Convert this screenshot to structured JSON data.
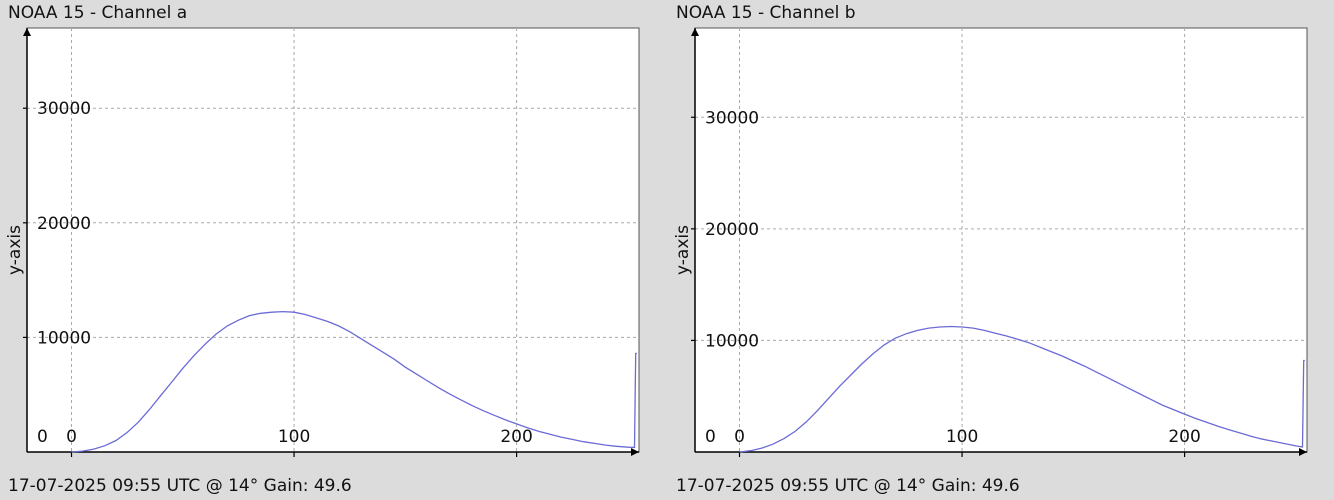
{
  "chart_data": [
    {
      "type": "line",
      "title": "NOAA 15 - Channel a",
      "footer": "17-07-2025 09:55 UTC @ 14° Gain: 49.6",
      "xlabel": "",
      "ylabel": "y-axis",
      "xlim": [
        -20,
        255
      ],
      "ylim": [
        0,
        37000
      ],
      "x_ticks": [
        0,
        100,
        200
      ],
      "y_ticks": [
        10000,
        20000,
        30000
      ],
      "grid": true,
      "line_color": "#6b6bd6",
      "series": [
        {
          "x": [
            0,
            5,
            10,
            15,
            20,
            25,
            30,
            35,
            40,
            45,
            50,
            55,
            60,
            65,
            70,
            75,
            80,
            85,
            90,
            95,
            100,
            105,
            110,
            115,
            120,
            125,
            130,
            135,
            140,
            145,
            150,
            155,
            160,
            165,
            170,
            175,
            180,
            185,
            190,
            195,
            200,
            205,
            210,
            215,
            220,
            225,
            230,
            235,
            240,
            245,
            250,
            253,
            253.5,
            254
          ],
          "values": [
            0,
            80,
            250,
            550,
            1000,
            1700,
            2600,
            3700,
            4900,
            6100,
            7300,
            8400,
            9400,
            10300,
            11000,
            11500,
            11900,
            12100,
            12200,
            12250,
            12200,
            12000,
            11700,
            11400,
            11000,
            10500,
            9900,
            9300,
            8700,
            8100,
            7400,
            6800,
            6200,
            5600,
            5050,
            4550,
            4050,
            3600,
            3200,
            2800,
            2450,
            2100,
            1800,
            1550,
            1300,
            1100,
            900,
            750,
            600,
            500,
            420,
            400,
            8600,
            8600
          ]
        }
      ]
    },
    {
      "type": "line",
      "title": "NOAA 15 - Channel b",
      "footer": "17-07-2025 09:55 UTC @ 14° Gain: 49.6",
      "xlabel": "",
      "ylabel": "y-axis",
      "xlim": [
        -20,
        255
      ],
      "ylim": [
        0,
        38000
      ],
      "x_ticks": [
        0,
        100,
        200
      ],
      "y_ticks": [
        10000,
        20000,
        30000
      ],
      "grid": true,
      "line_color": "#6b6bd6",
      "series": [
        {
          "x": [
            0,
            5,
            10,
            15,
            20,
            25,
            30,
            35,
            40,
            45,
            50,
            55,
            60,
            65,
            70,
            75,
            80,
            85,
            90,
            95,
            100,
            105,
            110,
            115,
            120,
            125,
            130,
            135,
            140,
            145,
            150,
            155,
            160,
            165,
            170,
            175,
            180,
            185,
            190,
            195,
            200,
            205,
            210,
            215,
            220,
            225,
            230,
            235,
            240,
            245,
            250,
            253,
            253.5,
            254
          ],
          "values": [
            0,
            120,
            350,
            700,
            1200,
            1850,
            2700,
            3700,
            4800,
            5900,
            6900,
            7900,
            8800,
            9600,
            10200,
            10600,
            10900,
            11100,
            11200,
            11250,
            11200,
            11100,
            10900,
            10650,
            10400,
            10100,
            9800,
            9400,
            9000,
            8600,
            8150,
            7700,
            7200,
            6700,
            6200,
            5700,
            5200,
            4700,
            4200,
            3800,
            3400,
            3000,
            2650,
            2300,
            2000,
            1700,
            1400,
            1150,
            950,
            750,
            550,
            450,
            8200,
            8200
          ]
        }
      ]
    }
  ]
}
